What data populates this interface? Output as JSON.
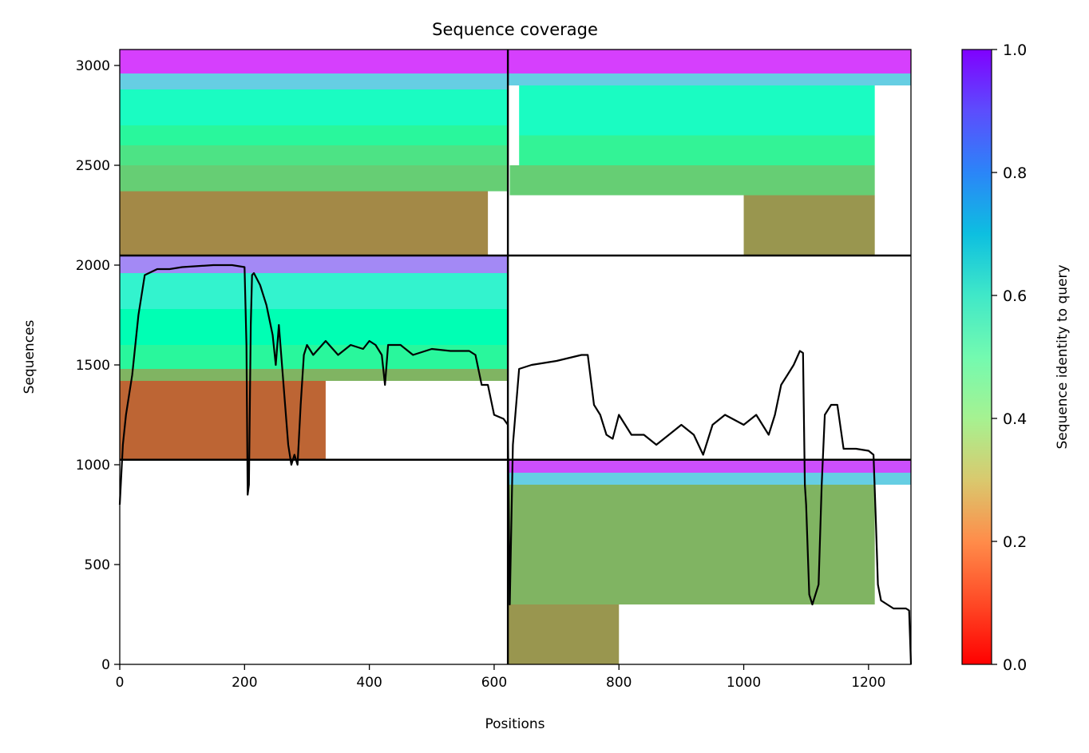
{
  "chart_data": {
    "type": "heatmap",
    "title": "Sequence coverage",
    "xlabel": "Positions",
    "ylabel": "Sequences",
    "xlim": [
      0,
      1268
    ],
    "ylim": [
      0,
      3080
    ],
    "x_ticks": [
      0,
      200,
      400,
      600,
      800,
      1000,
      1200
    ],
    "y_ticks": [
      0,
      500,
      1000,
      1500,
      2000,
      2500,
      3000
    ],
    "colorbar": {
      "label": "Sequence identity to query",
      "range": [
        0.0,
        1.0
      ],
      "ticks": [
        0.0,
        0.2,
        0.4,
        0.6,
        0.8,
        1.0
      ],
      "tick_labels": [
        "0.0",
        "0.2",
        "0.4",
        "0.6",
        "0.8",
        "1.0"
      ],
      "colormap": "rainbow_r"
    },
    "block_dividers": {
      "x": [
        622
      ],
      "y": [
        1025,
        2048
      ]
    },
    "blocks": [
      {
        "name": "top-left",
        "x": [
          0,
          622
        ],
        "y": [
          2048,
          3080
        ],
        "bands": [
          {
            "y": [
              2048,
              2370
            ],
            "x_end": 590,
            "identity": 0.18
          },
          {
            "y": [
              2370,
              2500
            ],
            "x_end": 622,
            "identity": 0.3
          },
          {
            "y": [
              2500,
              2600
            ],
            "x_end": 622,
            "identity": 0.35
          },
          {
            "y": [
              2600,
              2700
            ],
            "x_end": 622,
            "identity": 0.42
          },
          {
            "y": [
              2700,
              2880
            ],
            "x_end": 622,
            "identity": 0.55
          },
          {
            "y": [
              2880,
              2960
            ],
            "x_end": 622,
            "identity": 0.7
          },
          {
            "y": [
              2960,
              3080
            ],
            "x_end": 622,
            "identity": 0.92
          }
        ]
      },
      {
        "name": "top-right",
        "x": [
          622,
          1268
        ],
        "y": [
          2048,
          3080
        ],
        "bands": [
          {
            "y": [
              2048,
              2350
            ],
            "x_start": 1000,
            "x_end": 1210,
            "identity": 0.2
          },
          {
            "y": [
              2350,
              2500
            ],
            "x_start": 625,
            "x_end": 1210,
            "identity": 0.3
          },
          {
            "y": [
              2500,
              2650
            ],
            "x_start": 640,
            "x_end": 1210,
            "identity": 0.4
          },
          {
            "y": [
              2650,
              2900
            ],
            "x_start": 640,
            "x_end": 1210,
            "identity": 0.55
          },
          {
            "y": [
              2900,
              2960
            ],
            "x_start": 622,
            "x_end": 1268,
            "identity": 0.7
          },
          {
            "y": [
              2960,
              3080
            ],
            "x_start": 622,
            "x_end": 1268,
            "identity": 0.92
          }
        ]
      },
      {
        "name": "middle-left",
        "x": [
          0,
          622
        ],
        "y": [
          1025,
          2048
        ],
        "bands": [
          {
            "y": [
              1025,
              1420
            ],
            "x_end": 330,
            "identity": 0.13
          },
          {
            "y": [
              1420,
              1480
            ],
            "x_end": 622,
            "identity": 0.25
          },
          {
            "y": [
              1480,
              1600
            ],
            "x_end": 622,
            "identity": 0.42
          },
          {
            "y": [
              1600,
              1780
            ],
            "x_end": 622,
            "identity": 0.5
          },
          {
            "y": [
              1780,
              1960
            ],
            "x_end": 622,
            "identity": 0.6
          },
          {
            "y": [
              1960,
              2048
            ],
            "x_end": 622,
            "identity": 0.82
          }
        ]
      },
      {
        "name": "bottom-right",
        "x": [
          622,
          1268
        ],
        "y": [
          0,
          1025
        ],
        "bands": [
          {
            "y": [
              0,
              300
            ],
            "x_start": 622,
            "x_end": 800,
            "identity": 0.2
          },
          {
            "y": [
              300,
              900
            ],
            "x_start": 622,
            "x_end": 1210,
            "identity": 0.25
          },
          {
            "y": [
              900,
              960
            ],
            "x_start": 622,
            "x_end": 1268,
            "identity": 0.7
          },
          {
            "y": [
              960,
              1025
            ],
            "x_start": 622,
            "x_end": 1268,
            "identity": 0.9
          }
        ]
      }
    ],
    "coverage_line": {
      "x": [
        0,
        5,
        10,
        15,
        20,
        25,
        30,
        40,
        60,
        80,
        100,
        150,
        180,
        200,
        203,
        205,
        207,
        210,
        212,
        215,
        225,
        235,
        245,
        250,
        255,
        260,
        265,
        270,
        275,
        280,
        285,
        290,
        295,
        300,
        310,
        330,
        350,
        370,
        390,
        400,
        410,
        420,
        425,
        430,
        450,
        470,
        480,
        500,
        530,
        560,
        570,
        580,
        590,
        600,
        615,
        622,
        625,
        630,
        640,
        660,
        700,
        740,
        750,
        760,
        770,
        780,
        790,
        800,
        820,
        840,
        860,
        880,
        900,
        920,
        935,
        950,
        970,
        1000,
        1020,
        1040,
        1050,
        1060,
        1070,
        1080,
        1090,
        1095,
        1098,
        1100,
        1105,
        1110,
        1115,
        1120,
        1125,
        1130,
        1140,
        1150,
        1160,
        1180,
        1200,
        1208,
        1212,
        1215,
        1220,
        1240,
        1260,
        1265,
        1268
      ],
      "y": [
        800,
        1100,
        1250,
        1350,
        1450,
        1600,
        1750,
        1950,
        1980,
        1980,
        1990,
        2000,
        2000,
        1990,
        1600,
        850,
        900,
        1700,
        1950,
        1960,
        1900,
        1800,
        1650,
        1500,
        1700,
        1500,
        1300,
        1100,
        1000,
        1050,
        1000,
        1300,
        1550,
        1600,
        1550,
        1620,
        1550,
        1600,
        1580,
        1620,
        1600,
        1550,
        1400,
        1600,
        1600,
        1550,
        1560,
        1580,
        1570,
        1570,
        1550,
        1400,
        1400,
        1250,
        1230,
        1200,
        300,
        1100,
        1480,
        1500,
        1520,
        1550,
        1550,
        1300,
        1250,
        1150,
        1130,
        1250,
        1150,
        1150,
        1100,
        1150,
        1200,
        1150,
        1050,
        1200,
        1250,
        1200,
        1250,
        1150,
        1250,
        1400,
        1450,
        1500,
        1570,
        1560,
        900,
        800,
        350,
        300,
        350,
        400,
        900,
        1250,
        1300,
        1300,
        1080,
        1080,
        1070,
        1050,
        700,
        400,
        320,
        280,
        280,
        270,
        0
      ]
    },
    "colors": {
      "divider": "#000000",
      "coverage_line": "#000000"
    }
  }
}
